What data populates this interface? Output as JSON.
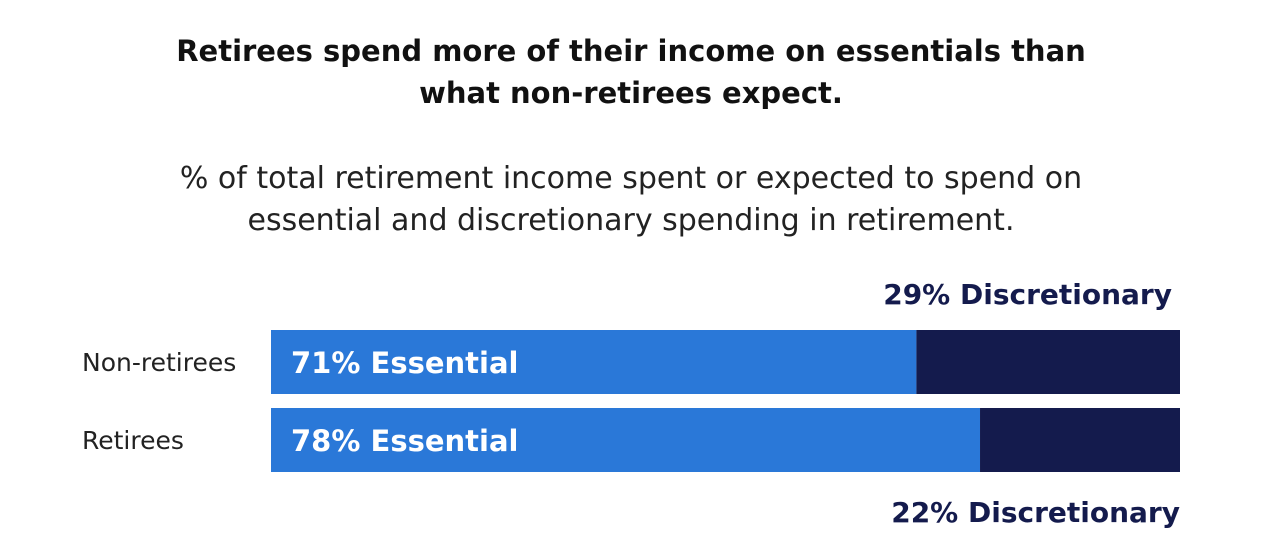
{
  "title": {
    "line1": "Retirees spend more of their income on essentials than",
    "line2": "what non-retirees expect."
  },
  "subtitle": {
    "line1": "% of total retirement income spent or expected to spend on",
    "line2": "essential and discretionary spending in retirement."
  },
  "colors": {
    "essential": "#2a78d8",
    "discretionary": "#141b4d",
    "essential_label": "#ffffff",
    "discretionary_label": "#141b4d",
    "category_label": "#222222"
  },
  "chart_data": {
    "type": "bar",
    "orientation": "horizontal",
    "stacked": true,
    "categories": [
      "Non-retirees",
      "Retirees"
    ],
    "series": [
      {
        "name": "Essential",
        "values": [
          71,
          78
        ],
        "labels": [
          "71% Essential",
          "78% Essential"
        ]
      },
      {
        "name": "Discretionary",
        "values": [
          29,
          22
        ],
        "labels": [
          "29% Discretionary",
          "22% Discretionary"
        ]
      }
    ],
    "xlim": [
      0,
      100
    ],
    "grid": false,
    "legend": "none"
  }
}
